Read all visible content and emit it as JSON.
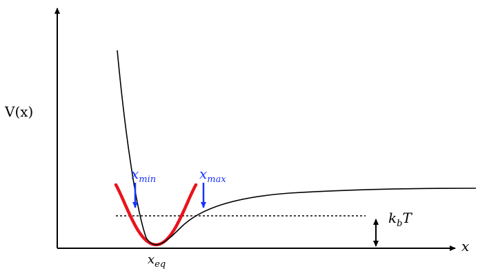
{
  "axes": {
    "y_label": "V(x)",
    "x_label": "x"
  },
  "annotations": {
    "x_min": {
      "base": "x",
      "sub": "min"
    },
    "x_max": {
      "base": "x",
      "sub": "max"
    },
    "x_eq": {
      "base": "x",
      "sub": "eq"
    },
    "kbT": {
      "base": "k",
      "sub": "b",
      "rest": "T"
    }
  },
  "colors": {
    "potential_curve": "#000000",
    "harmonic_fit": "#e8141c",
    "bound_arrows": "#1a33ff",
    "axes": "#000000"
  }
}
